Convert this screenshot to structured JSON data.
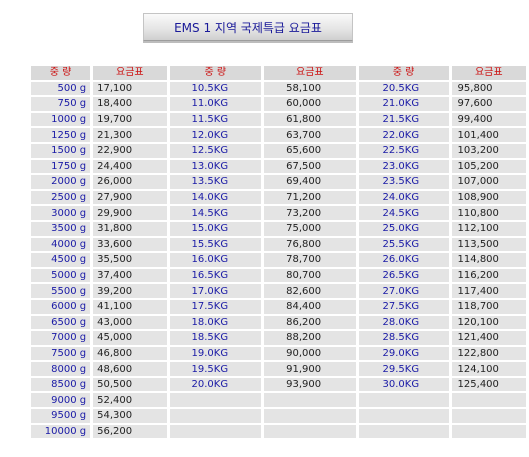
{
  "title": "EMS 1 지역 국제특급 요금표",
  "headers": [
    "중 량",
    "요금표",
    "중 량",
    "요금표",
    "중 량",
    "요금표"
  ],
  "rows": [
    [
      "500 g",
      "17,100",
      "10.5KG",
      "58,100",
      "20.5KG",
      "95,800"
    ],
    [
      "750 g",
      "18,400",
      "11.0KG",
      "60,000",
      "21.0KG",
      "97,600"
    ],
    [
      "1000 g",
      "19,700",
      "11.5KG",
      "61,800",
      "21.5KG",
      "99,400"
    ],
    [
      "1250 g",
      "21,300",
      "12.0KG",
      "63,700",
      "22.0KG",
      "101,400"
    ],
    [
      "1500 g",
      "22,900",
      "12.5KG",
      "65,600",
      "22.5KG",
      "103,200"
    ],
    [
      "1750 g",
      "24,400",
      "13.0KG",
      "67,500",
      "23.0KG",
      "105,200"
    ],
    [
      "2000 g",
      "26,000",
      "13.5KG",
      "69,400",
      "23.5KG",
      "107,000"
    ],
    [
      "2500 g",
      "27,900",
      "14.0KG",
      "71,200",
      "24.0KG",
      "108,900"
    ],
    [
      "3000 g",
      "29,900",
      "14.5KG",
      "73,200",
      "24.5KG",
      "110,800"
    ],
    [
      "3500 g",
      "31,800",
      "15.0KG",
      "75,000",
      "25.0KG",
      "112,100"
    ],
    [
      "4000 g",
      "33,600",
      "15.5KG",
      "76,800",
      "25.5KG",
      "113,500"
    ],
    [
      "4500 g",
      "35,500",
      "16.0KG",
      "78,700",
      "26.0KG",
      "114,800"
    ],
    [
      "5000 g",
      "37,400",
      "16.5KG",
      "80,700",
      "26.5KG",
      "116,200"
    ],
    [
      "5500 g",
      "39,200",
      "17.0KG",
      "82,600",
      "27.0KG",
      "117,400"
    ],
    [
      "6000 g",
      "41,100",
      "17.5KG",
      "84,400",
      "27.5KG",
      "118,700"
    ],
    [
      "6500 g",
      "43,000",
      "18.0KG",
      "86,200",
      "28.0KG",
      "120,100"
    ],
    [
      "7000 g",
      "45,000",
      "18.5KG",
      "88,200",
      "28.5KG",
      "121,400"
    ],
    [
      "7500 g",
      "46,800",
      "19.0KG",
      "90,000",
      "29.0KG",
      "122,800"
    ],
    [
      "8000 g",
      "48,600",
      "19.5KG",
      "91,900",
      "29.5KG",
      "124,100"
    ],
    [
      "8500 g",
      "50,500",
      "20.0KG",
      "93,900",
      "30.0KG",
      "125,400"
    ],
    [
      "9000 g",
      "52,400",
      "",
      "",
      "",
      ""
    ],
    [
      "9500 g",
      "54,300",
      "",
      "",
      "",
      ""
    ],
    [
      "10000 g",
      "56,200",
      "",
      "",
      "",
      ""
    ]
  ]
}
